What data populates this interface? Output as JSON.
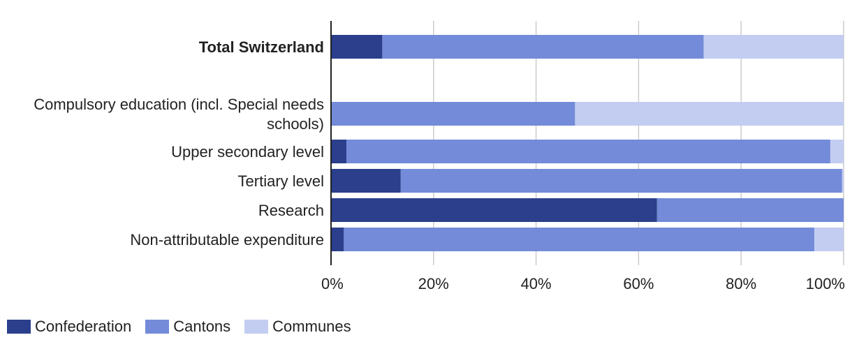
{
  "chart_data": {
    "type": "bar",
    "orientation": "horizontal",
    "stacked": true,
    "title": "",
    "categories": [
      "Total Switzerland",
      "Compulsory education (incl. Special needs schools)",
      "Upper secondary level",
      "Tertiary level",
      "Research",
      "Non-attributable expenditure"
    ],
    "category_lines": [
      [
        "Total Switzerland"
      ],
      [
        "Compulsory education (incl. Special needs",
        "schools)"
      ],
      [
        "Upper secondary level"
      ],
      [
        "Tertiary level"
      ],
      [
        "Research"
      ],
      [
        "Non-attributable expenditure"
      ]
    ],
    "bold_categories": [
      "Total Switzerland"
    ],
    "series": [
      {
        "name": "Confederation",
        "color": "#2b3f8c",
        "values": [
          10,
          0,
          3,
          13.6,
          63.6,
          2.5
        ]
      },
      {
        "name": "Cantons",
        "color": "#738bd8",
        "values": [
          62.7,
          47.6,
          94.4,
          86.1,
          36.4,
          91.8
        ]
      },
      {
        "name": "Communes",
        "color": "#c3cdf1",
        "values": [
          27.3,
          52.4,
          2.6,
          0.3,
          0,
          5.7
        ]
      }
    ],
    "xlim": [
      0,
      100
    ],
    "xticks": [
      0,
      20,
      40,
      60,
      80,
      100
    ],
    "xtick_labels": [
      "0%",
      "20%",
      "40%",
      "60%",
      "80%",
      "100%"
    ],
    "grid": true,
    "legend_position": "bottom-left"
  }
}
